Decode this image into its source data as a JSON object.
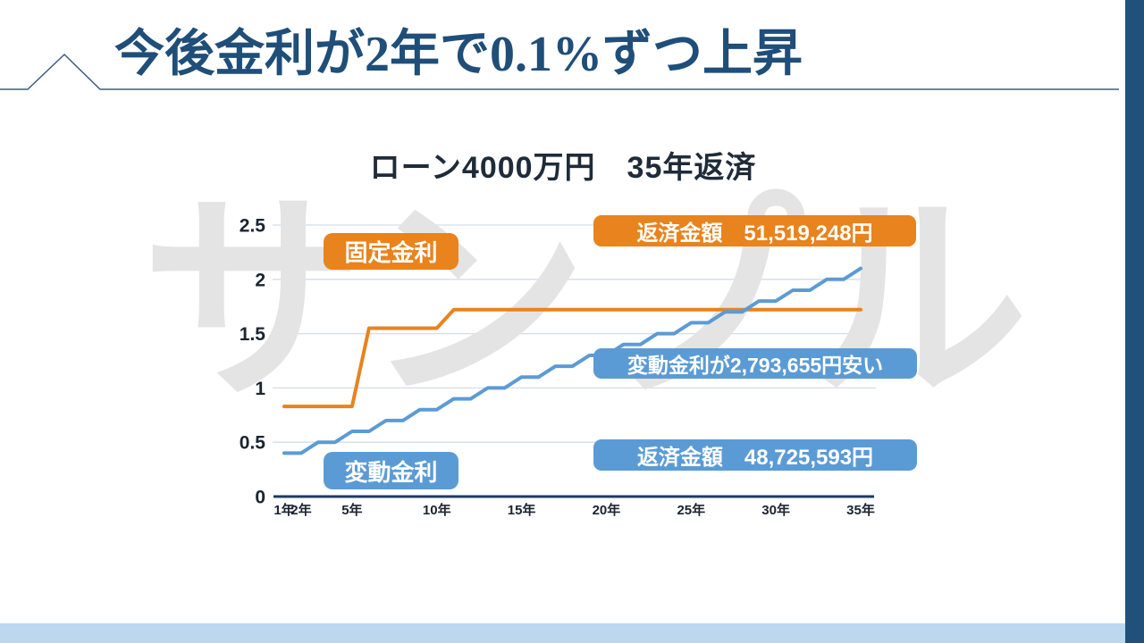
{
  "slide": {
    "title": "今後金利が2年で0.1%ずつ上昇",
    "watermark": "サンプル"
  },
  "labels": {
    "fixed_series": "固定金利",
    "variable_series": "変動金利",
    "fixed_total": "返済金額　51,519,248円",
    "difference": "変動金利が2,793,655円安い",
    "variable_total": "返済金額　48,725,593円"
  },
  "colors": {
    "orange": "#E8831D",
    "blue": "#5B9BD5",
    "title_navy": "#1F4E79",
    "side_bar": "#21507B",
    "bottom_bar": "#BDD7EE",
    "gridline": "#D2DEEC",
    "axis": "#1E3A5F",
    "tick_text": "#1B2430",
    "watermark_gray": "#E4E4E4"
  },
  "chart_data": {
    "type": "line",
    "title": "ローン4000万円　35年返済",
    "x_unit": "年",
    "x_range": [
      1,
      35
    ],
    "ylim": [
      0,
      2.5
    ],
    "grid": true,
    "legend_position": "inline-badges",
    "x_ticks": [
      1,
      2,
      5,
      10,
      15,
      20,
      25,
      30,
      35
    ],
    "x_tick_labels": [
      "1年",
      "2年",
      "5年",
      "10年",
      "15年",
      "20年",
      "25年",
      "30年",
      "35年"
    ],
    "y_ticks": [
      0,
      0.5,
      1,
      1.5,
      2,
      2.5
    ],
    "y_tick_labels": [
      "0",
      "0.5",
      "1",
      "1.5",
      "2",
      "2.5"
    ],
    "series": [
      {
        "name": "固定金利",
        "color": "#E8831D",
        "total_payment_label": "返済金額　51,519,248円",
        "points": [
          [
            1,
            0.83
          ],
          [
            5,
            0.83
          ],
          [
            6,
            1.55
          ],
          [
            10,
            1.55
          ],
          [
            11,
            1.72
          ],
          [
            35,
            1.72
          ]
        ]
      },
      {
        "name": "変動金利",
        "color": "#5B9BD5",
        "total_payment_label": "返済金額　48,725,593円",
        "points": [
          [
            1,
            0.4
          ],
          [
            2,
            0.4
          ],
          [
            3,
            0.5
          ],
          [
            4,
            0.5
          ],
          [
            5,
            0.6
          ],
          [
            6,
            0.6
          ],
          [
            7,
            0.7
          ],
          [
            8,
            0.7
          ],
          [
            9,
            0.8
          ],
          [
            10,
            0.8
          ],
          [
            11,
            0.9
          ],
          [
            12,
            0.9
          ],
          [
            13,
            1.0
          ],
          [
            14,
            1.0
          ],
          [
            15,
            1.1
          ],
          [
            16,
            1.1
          ],
          [
            17,
            1.2
          ],
          [
            18,
            1.2
          ],
          [
            19,
            1.3
          ],
          [
            20,
            1.3
          ],
          [
            21,
            1.4
          ],
          [
            22,
            1.4
          ],
          [
            23,
            1.5
          ],
          [
            24,
            1.5
          ],
          [
            25,
            1.6
          ],
          [
            26,
            1.6
          ],
          [
            27,
            1.7
          ],
          [
            28,
            1.7
          ],
          [
            29,
            1.8
          ],
          [
            30,
            1.8
          ],
          [
            31,
            1.9
          ],
          [
            32,
            1.9
          ],
          [
            33,
            2.0
          ],
          [
            34,
            2.0
          ],
          [
            35,
            2.1
          ]
        ]
      }
    ],
    "annotations": [
      {
        "text": "固定金利",
        "color": "#E8831D"
      },
      {
        "text": "返済金額　51,519,248円",
        "color": "#E8831D"
      },
      {
        "text": "変動金利が2,793,655円安い",
        "color": "#5B9BD5"
      },
      {
        "text": "返済金額　48,725,593円",
        "color": "#5B9BD5"
      },
      {
        "text": "変動金利",
        "color": "#5B9BD5"
      }
    ]
  }
}
